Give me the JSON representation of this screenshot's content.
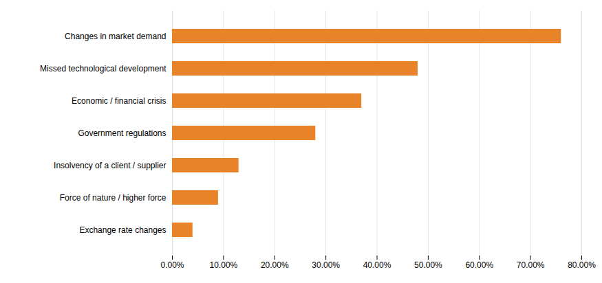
{
  "chart_data": {
    "type": "bar",
    "orientation": "horizontal",
    "categories": [
      "Exchange rate changes",
      "Force of nature / higher force",
      "Insolvency of a client / supplier",
      "Government regulations",
      "Economic / financial crisis",
      "Missed technological development",
      "Changes in market demand"
    ],
    "values": [
      0.04,
      0.09,
      0.13,
      0.28,
      0.37,
      0.48,
      0.76
    ],
    "color": "#E8832A",
    "xlim": [
      0,
      0.8
    ],
    "xticks": [
      {
        "value": 0.0,
        "label": "0.00%"
      },
      {
        "value": 0.1,
        "label": "10.00%"
      },
      {
        "value": 0.2,
        "label": "20.00%"
      },
      {
        "value": 0.3,
        "label": "30.00%"
      },
      {
        "value": 0.4,
        "label": "40.00%"
      },
      {
        "value": 0.5,
        "label": "50.00%"
      },
      {
        "value": 0.6,
        "label": "60.00%"
      },
      {
        "value": 0.7,
        "label": "70.00%"
      },
      {
        "value": 0.8,
        "label": "80.00%"
      }
    ],
    "grid": true
  }
}
